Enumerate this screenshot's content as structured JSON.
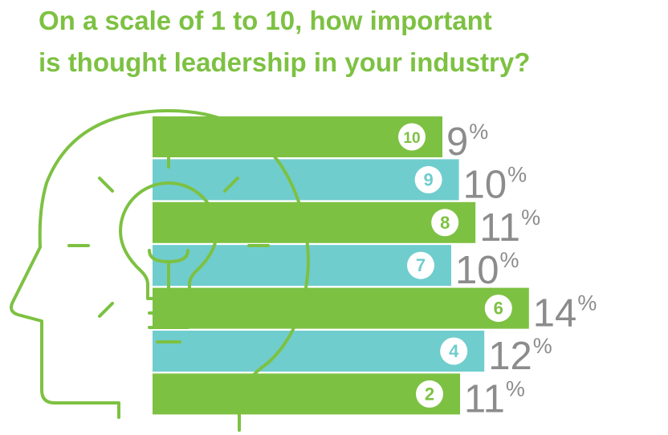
{
  "title": {
    "line1": "On a scale of 1 to 10, how important",
    "line2": "is thought leadership in your industry?"
  },
  "colors": {
    "green": "#7dc142",
    "teal": "#70cdcd",
    "value_text": "#8c8c8c",
    "badge_bg": "#ffffff"
  },
  "icons": [
    "head-silhouette-icon",
    "lightbulb-icon"
  ],
  "chart_data": {
    "type": "bar",
    "orientation": "horizontal",
    "title": "On a scale of 1 to 10, how important is thought leadership in your industry?",
    "categories": [
      "10",
      "9",
      "8",
      "7",
      "6",
      "4",
      "2"
    ],
    "values": [
      9,
      10,
      11,
      10,
      14,
      12,
      11
    ],
    "value_labels": [
      "9",
      "10",
      "11",
      "10",
      "14",
      "12",
      "11"
    ],
    "unit": "%",
    "bar_colors": [
      "green",
      "teal",
      "green",
      "teal",
      "green",
      "teal",
      "green"
    ]
  }
}
